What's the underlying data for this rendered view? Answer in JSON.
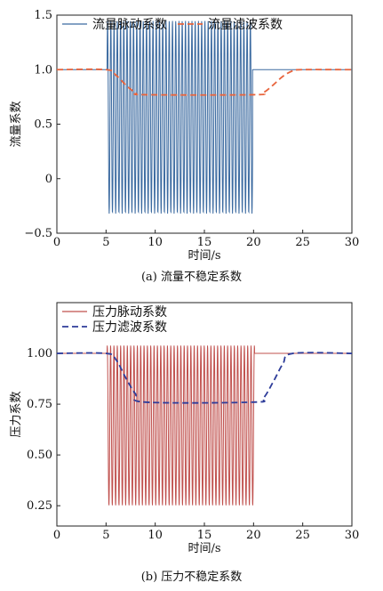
{
  "chart_data": [
    {
      "type": "line",
      "caption": "(a) 流量不稳定系数",
      "xlabel": "时间/s",
      "ylabel": "流量系数",
      "xlim": [
        0,
        30
      ],
      "ylim": [
        -0.5,
        1.5
      ],
      "x_ticks": [
        0,
        5,
        10,
        15,
        20,
        25,
        30
      ],
      "y_ticks": [
        -0.5,
        0,
        0.5,
        1.0,
        1.5
      ],
      "y_tick_labels": [
        "−0.5",
        "0",
        "0.5",
        "1.0",
        "1.5"
      ],
      "legend_position": "top-left",
      "series": [
        {
          "name": "流量脉动系数",
          "style": "solid",
          "color": "#3b6aa0",
          "baseline": 1.0,
          "oscillation": {
            "start": 5.1,
            "end": 19.9,
            "max": 1.45,
            "min": -0.32,
            "period": 0.33
          }
        },
        {
          "name": "流量滤波系数",
          "style": "dashed",
          "color": "#e8643c",
          "points": [
            [
              0,
              1.0
            ],
            [
              5.0,
              1.0
            ],
            [
              6.0,
              0.95
            ],
            [
              7.0,
              0.86
            ],
            [
              8.0,
              0.79
            ],
            [
              9.0,
              0.77
            ],
            [
              20.0,
              0.77
            ],
            [
              21.0,
              0.79
            ],
            [
              22.0,
              0.86
            ],
            [
              23.0,
              0.94
            ],
            [
              24.0,
              0.99
            ],
            [
              25.0,
              1.0
            ],
            [
              30,
              1.0
            ]
          ]
        }
      ]
    },
    {
      "type": "line",
      "caption": "(b) 压力不稳定系数",
      "xlabel": "时间/s",
      "ylabel": "压力系数",
      "xlim": [
        0,
        30
      ],
      "ylim": [
        0.15,
        1.25
      ],
      "x_ticks": [
        0,
        5,
        10,
        15,
        20,
        25,
        30
      ],
      "y_ticks": [
        0.25,
        0.5,
        0.75,
        1.0
      ],
      "y_tick_labels": [
        "0.25",
        "0.50",
        "0.75",
        "1.00"
      ],
      "legend_position": "top-left",
      "series": [
        {
          "name": "压力脉动系数",
          "style": "solid",
          "color": "#c0504d",
          "baseline": 1.0,
          "oscillation": {
            "start": 5.1,
            "end": 20.1,
            "max": 1.04,
            "min": 0.25,
            "period": 0.34
          }
        },
        {
          "name": "压力滤波系数",
          "style": "dashed",
          "color": "#2e3d9a",
          "points": [
            [
              0,
              1.0
            ],
            [
              5.0,
              1.0
            ],
            [
              6.0,
              0.97
            ],
            [
              7.0,
              0.88
            ],
            [
              8.0,
              0.8
            ],
            [
              9.0,
              0.76
            ],
            [
              20.0,
              0.76
            ],
            [
              21.0,
              0.78
            ],
            [
              22.0,
              0.86
            ],
            [
              23.0,
              0.95
            ],
            [
              24.0,
              1.0
            ],
            [
              30,
              1.0
            ]
          ]
        }
      ]
    }
  ]
}
